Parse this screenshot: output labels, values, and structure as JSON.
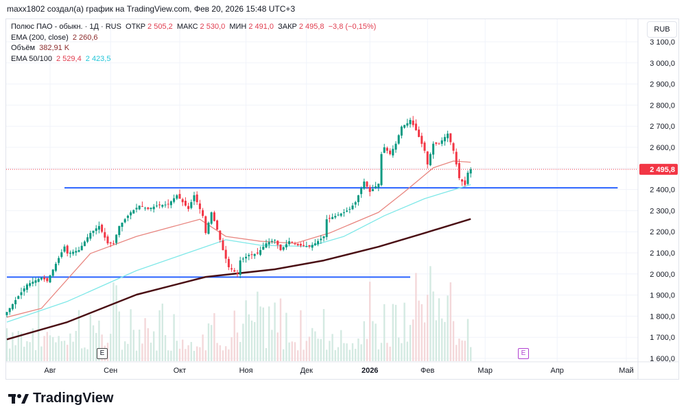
{
  "caption": "maxx1802 создал(а) график на TradingView.com, Фев 20, 2026 15:48 UTC+3",
  "legend": {
    "symbol": "Полюс ПАО - обыкн. · 1Д · RUS",
    "open_label": "ОТКР",
    "open": "2 505,2",
    "high_label": "МАКС",
    "high": "2 530,0",
    "low_label": "МИН",
    "low": "2 491,0",
    "close_label": "ЗАКР",
    "close": "2 495,8",
    "change": "−3,8 (−0,15%)",
    "ema200_label": "EMA (200, close)",
    "ema200": "2 260,6",
    "volume_label": "Объём",
    "volume": "382,91 K",
    "ema50100_label": "EMA 50/100",
    "ema50": "2 529,4",
    "ema100": "2 423,5"
  },
  "currency": "RUB",
  "last_price_label": "2 495,8",
  "earnings_marker": "E",
  "logo": "TradingView",
  "colors": {
    "up": "#089981",
    "down": "#f23645",
    "ema200": "#4a0f14",
    "ema50": "#e8857f",
    "ema100": "#7ee8e8",
    "level": "#2962ff",
    "last": "#f23645"
  },
  "chart_data": {
    "type": "candlestick",
    "title": "Полюс ПАО - обыкн. · 1Д",
    "ylabel": "RUB",
    "ylim": [
      1600,
      3100
    ],
    "y_ticks": [
      3100,
      3000,
      2900,
      2800,
      2700,
      2600,
      2400,
      2300,
      2200,
      2100,
      2000,
      1900,
      1800,
      1700,
      1600
    ],
    "y_tick_labels": [
      "3 100,0",
      "3 000,0",
      "2 900,0",
      "2 800,0",
      "2 700,0",
      "2 600,0",
      "2 400,0",
      "2 300,0",
      "2 200,0",
      "2 100,0",
      "2 000,0",
      "1 900,0",
      "1 800,0",
      "1 700,0",
      "1 600,0"
    ],
    "x_ticks": [
      {
        "day": 15,
        "label": "Авг"
      },
      {
        "day": 36,
        "label": "Сен"
      },
      {
        "day": 60,
        "label": "Окт"
      },
      {
        "day": 83,
        "label": "Ноя"
      },
      {
        "day": 104,
        "label": "Дек"
      },
      {
        "day": 126,
        "label": "2026"
      },
      {
        "day": 146,
        "label": "Фев"
      },
      {
        "day": 166,
        "label": "Мар"
      },
      {
        "day": 191,
        "label": "Апр"
      },
      {
        "day": 215,
        "label": "Май"
      }
    ],
    "close_anchors": [
      [
        0,
        1820
      ],
      [
        4,
        1895
      ],
      [
        7,
        1950
      ],
      [
        12,
        1983
      ],
      [
        14,
        1966
      ],
      [
        17,
        2048
      ],
      [
        20,
        2130
      ],
      [
        21,
        2097
      ],
      [
        25,
        2113
      ],
      [
        29,
        2194
      ],
      [
        32,
        2227
      ],
      [
        35,
        2145
      ],
      [
        37,
        2145
      ],
      [
        39,
        2227
      ],
      [
        43,
        2292
      ],
      [
        46,
        2324
      ],
      [
        49,
        2308
      ],
      [
        52,
        2324
      ],
      [
        56,
        2330
      ],
      [
        59,
        2373
      ],
      [
        61,
        2340
      ],
      [
        63,
        2308
      ],
      [
        65,
        2373
      ],
      [
        68,
        2275
      ],
      [
        69,
        2194
      ],
      [
        71,
        2292
      ],
      [
        73,
        2210
      ],
      [
        75,
        2113
      ],
      [
        77,
        2032
      ],
      [
        80,
        2000
      ],
      [
        81,
        2064
      ],
      [
        84,
        2090
      ],
      [
        87,
        2097
      ],
      [
        90,
        2145
      ],
      [
        93,
        2162
      ],
      [
        95,
        2113
      ],
      [
        98,
        2155
      ],
      [
        101,
        2136
      ],
      [
        105,
        2130
      ],
      [
        107,
        2145
      ],
      [
        110,
        2178
      ],
      [
        111,
        2259
      ],
      [
        114,
        2275
      ],
      [
        117,
        2292
      ],
      [
        119,
        2308
      ],
      [
        121,
        2340
      ],
      [
        124,
        2438
      ],
      [
        126,
        2389
      ],
      [
        129,
        2428
      ],
      [
        130,
        2568
      ],
      [
        131,
        2600
      ],
      [
        133,
        2568
      ],
      [
        135,
        2617
      ],
      [
        137,
        2698
      ],
      [
        139,
        2714
      ],
      [
        140,
        2730
      ],
      [
        142,
        2681
      ],
      [
        143,
        2649
      ],
      [
        145,
        2584
      ],
      [
        146,
        2519
      ],
      [
        148,
        2617
      ],
      [
        150,
        2617
      ],
      [
        152,
        2649
      ],
      [
        153,
        2665
      ],
      [
        155,
        2584
      ],
      [
        157,
        2454
      ],
      [
        159,
        2422
      ],
      [
        160,
        2480
      ],
      [
        161,
        2495.8
      ]
    ],
    "ema200": [
      [
        0,
        1690
      ],
      [
        21,
        1772
      ],
      [
        45,
        1902
      ],
      [
        69,
        1986
      ],
      [
        93,
        2022
      ],
      [
        110,
        2064
      ],
      [
        129,
        2129
      ],
      [
        145,
        2194
      ],
      [
        161,
        2260.6
      ]
    ],
    "ema50": [
      [
        0,
        1795
      ],
      [
        12,
        1837
      ],
      [
        29,
        2097
      ],
      [
        45,
        2178
      ],
      [
        67,
        2259
      ],
      [
        76,
        2178
      ],
      [
        88,
        2155
      ],
      [
        100,
        2145
      ],
      [
        112,
        2194
      ],
      [
        129,
        2292
      ],
      [
        138,
        2389
      ],
      [
        148,
        2503
      ],
      [
        155,
        2535
      ],
      [
        161,
        2529.4
      ]
    ],
    "ema100": [
      [
        0,
        1772
      ],
      [
        21,
        1870
      ],
      [
        45,
        2016
      ],
      [
        67,
        2120
      ],
      [
        76,
        2162
      ],
      [
        88,
        2136
      ],
      [
        105,
        2130
      ],
      [
        117,
        2178
      ],
      [
        131,
        2276
      ],
      [
        145,
        2357
      ],
      [
        161,
        2423.5
      ]
    ],
    "levels": [
      {
        "price": 2408,
        "from_day": 20,
        "to_day": 212
      },
      {
        "price": 1985,
        "from_day": 0,
        "to_day": 140
      }
    ],
    "last_price": 2495.8,
    "earnings_days": [
      33,
      179
    ]
  }
}
